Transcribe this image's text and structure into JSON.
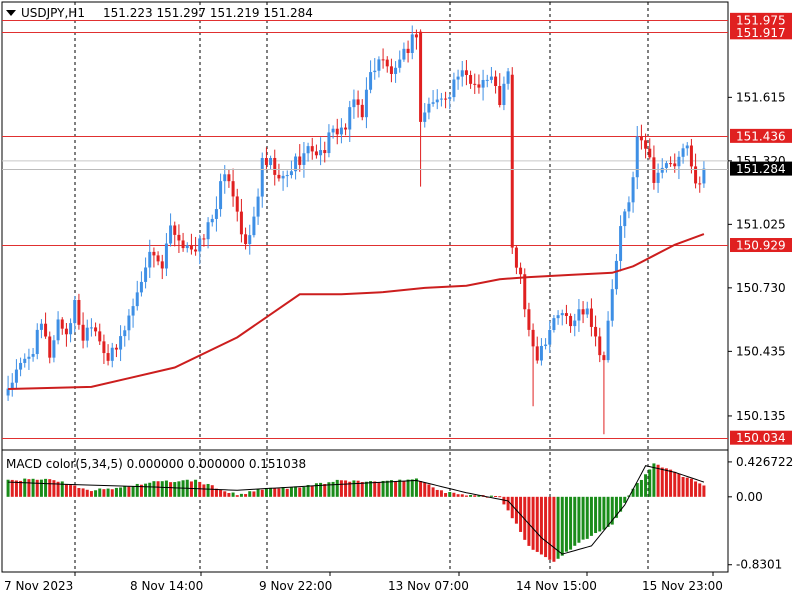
{
  "header": {
    "symbol": "USDJPY,H1",
    "ohlc": "151.223 151.297 151.219 151.284"
  },
  "macd_label": "MACD color(5,34,5) 0.000000 0.000000 0.151038",
  "colors": {
    "bull": "#3e8fe5",
    "bear": "#e02020",
    "ma": "#cc1e1e",
    "level_line": "#e03030",
    "price_bg": "#000000",
    "level_bg": "#e02020",
    "hist_pos": "#1a8c1a",
    "hist_neg": "#e02020"
  },
  "chart_data": [
    {
      "type": "candlestick",
      "title": "USDJPY,H1",
      "ylim": [
        150.0,
        152.03
      ],
      "x_time_labels": [
        "7 Nov 2023",
        "8 Nov 14:00",
        "9 Nov 22:00",
        "13 Nov 07:00",
        "14 Nov 15:00",
        "15 Nov 23:00"
      ],
      "y_tick_labels": [
        "151.615",
        "151.320",
        "151.025",
        "150.730",
        "150.435",
        "150.135"
      ],
      "y_ticks": [
        151.615,
        151.32,
        151.025,
        150.73,
        150.435,
        150.135
      ],
      "horizontal_levels": [
        {
          "label": "151.975",
          "value": 151.975
        },
        {
          "label": "151.917",
          "value": 151.917
        },
        {
          "label": "151.436",
          "value": 151.436
        },
        {
          "label": "150.929",
          "value": 150.929
        },
        {
          "label": "150.034",
          "value": 150.034
        }
      ],
      "current_price": {
        "label": "151.284",
        "value": 151.284
      },
      "close_path": [
        [
          0,
          150.27
        ],
        [
          6,
          150.45
        ],
        [
          8,
          150.55
        ],
        [
          10,
          150.42
        ],
        [
          12,
          150.58
        ],
        [
          14,
          150.52
        ],
        [
          16,
          150.65
        ],
        [
          18,
          150.5
        ],
        [
          20,
          150.58
        ],
        [
          22,
          150.5
        ],
        [
          24,
          150.4
        ],
        [
          26,
          150.44
        ],
        [
          28,
          150.55
        ],
        [
          31,
          150.7
        ],
        [
          33,
          150.85
        ],
        [
          35,
          150.9
        ],
        [
          37,
          150.82
        ],
        [
          39,
          151.0
        ],
        [
          41,
          150.92
        ],
        [
          43,
          150.95
        ],
        [
          45,
          150.88
        ],
        [
          47,
          150.98
        ],
        [
          49,
          151.05
        ],
        [
          51,
          151.2
        ],
        [
          53,
          151.25
        ],
        [
          55,
          151.1
        ],
        [
          57,
          150.9
        ],
        [
          59,
          151.05
        ],
        [
          61,
          151.3
        ],
        [
          63,
          151.3
        ],
        [
          65,
          151.22
        ],
        [
          67,
          151.25
        ],
        [
          69,
          151.32
        ],
        [
          71,
          151.35
        ],
        [
          73,
          151.38
        ],
        [
          75,
          151.35
        ],
        [
          77,
          151.42
        ],
        [
          79,
          151.47
        ],
        [
          81,
          151.47
        ],
        [
          83,
          151.6
        ],
        [
          85,
          151.55
        ],
        [
          87,
          151.72
        ],
        [
          89,
          151.8
        ],
        [
          91,
          151.75
        ],
        [
          93,
          151.72
        ],
        [
          96,
          151.85
        ],
        [
          98,
          151.92
        ],
        [
          99,
          151.5
        ],
        [
          100,
          151.55
        ],
        [
          102,
          151.6
        ],
        [
          104,
          151.6
        ],
        [
          106,
          151.65
        ],
        [
          108,
          151.72
        ],
        [
          110,
          151.7
        ],
        [
          112,
          151.68
        ],
        [
          114,
          151.7
        ],
        [
          116,
          151.7
        ],
        [
          118,
          151.6
        ],
        [
          120,
          151.72
        ],
        [
          121,
          150.9
        ],
        [
          123,
          150.78
        ],
        [
          125,
          150.5
        ],
        [
          127,
          150.42
        ],
        [
          129,
          150.5
        ],
        [
          131,
          150.6
        ],
        [
          133,
          150.62
        ],
        [
          135,
          150.55
        ],
        [
          137,
          150.62
        ],
        [
          139,
          150.65
        ],
        [
          141,
          150.5
        ],
        [
          143,
          150.4
        ],
        [
          145,
          150.72
        ],
        [
          147,
          151.0
        ],
        [
          149,
          151.12
        ],
        [
          151,
          151.42
        ],
        [
          153,
          151.38
        ],
        [
          155,
          151.25
        ],
        [
          157,
          151.3
        ],
        [
          159,
          151.28
        ],
        [
          161,
          151.32
        ],
        [
          163,
          151.38
        ],
        [
          164,
          151.28
        ],
        [
          166,
          151.22
        ],
        [
          167,
          151.284
        ]
      ],
      "series": [
        {
          "name": "",
          "style": "moving-average",
          "x": [
            0,
            20,
            40,
            55,
            70,
            80,
            90,
            100,
            110,
            118,
            125,
            135,
            145,
            150,
            155,
            160,
            167
          ],
          "values": [
            150.26,
            150.27,
            150.36,
            150.5,
            150.7,
            150.7,
            150.71,
            150.73,
            150.74,
            150.77,
            150.78,
            150.79,
            150.8,
            150.83,
            150.88,
            150.93,
            150.98
          ]
        }
      ]
    },
    {
      "type": "bar",
      "title": "MACD color(5,34,5) 0.000000 0.000000 0.151038",
      "ylim": [
        -0.87,
        0.45
      ],
      "y_tick_labels": [
        "0.426722",
        "0.00",
        "-0.8301"
      ],
      "y_ticks": [
        0.426722,
        0.0,
        -0.8301
      ],
      "path": [
        [
          0,
          0.2
        ],
        [
          10,
          0.22
        ],
        [
          20,
          0.08
        ],
        [
          25,
          0.1
        ],
        [
          35,
          0.18
        ],
        [
          45,
          0.2
        ],
        [
          55,
          0.02
        ],
        [
          62,
          0.1
        ],
        [
          70,
          0.12
        ],
        [
          80,
          0.2
        ],
        [
          90,
          0.18
        ],
        [
          98,
          0.22
        ],
        [
          105,
          0.05
        ],
        [
          112,
          0.02
        ],
        [
          118,
          0.0
        ],
        [
          125,
          -0.6
        ],
        [
          131,
          -0.8
        ],
        [
          137,
          -0.55
        ],
        [
          145,
          -0.35
        ],
        [
          150,
          0.1
        ],
        [
          155,
          0.4
        ],
        [
          160,
          0.3
        ],
        [
          167,
          0.15
        ]
      ],
      "signal_path": [
        [
          0,
          0.18
        ],
        [
          15,
          0.15
        ],
        [
          35,
          0.12
        ],
        [
          55,
          0.08
        ],
        [
          75,
          0.14
        ],
        [
          98,
          0.2
        ],
        [
          110,
          0.05
        ],
        [
          120,
          -0.05
        ],
        [
          128,
          -0.5
        ],
        [
          133,
          -0.7
        ],
        [
          140,
          -0.6
        ],
        [
          148,
          -0.1
        ],
        [
          153,
          0.38
        ],
        [
          160,
          0.3
        ],
        [
          167,
          0.18
        ]
      ]
    }
  ]
}
